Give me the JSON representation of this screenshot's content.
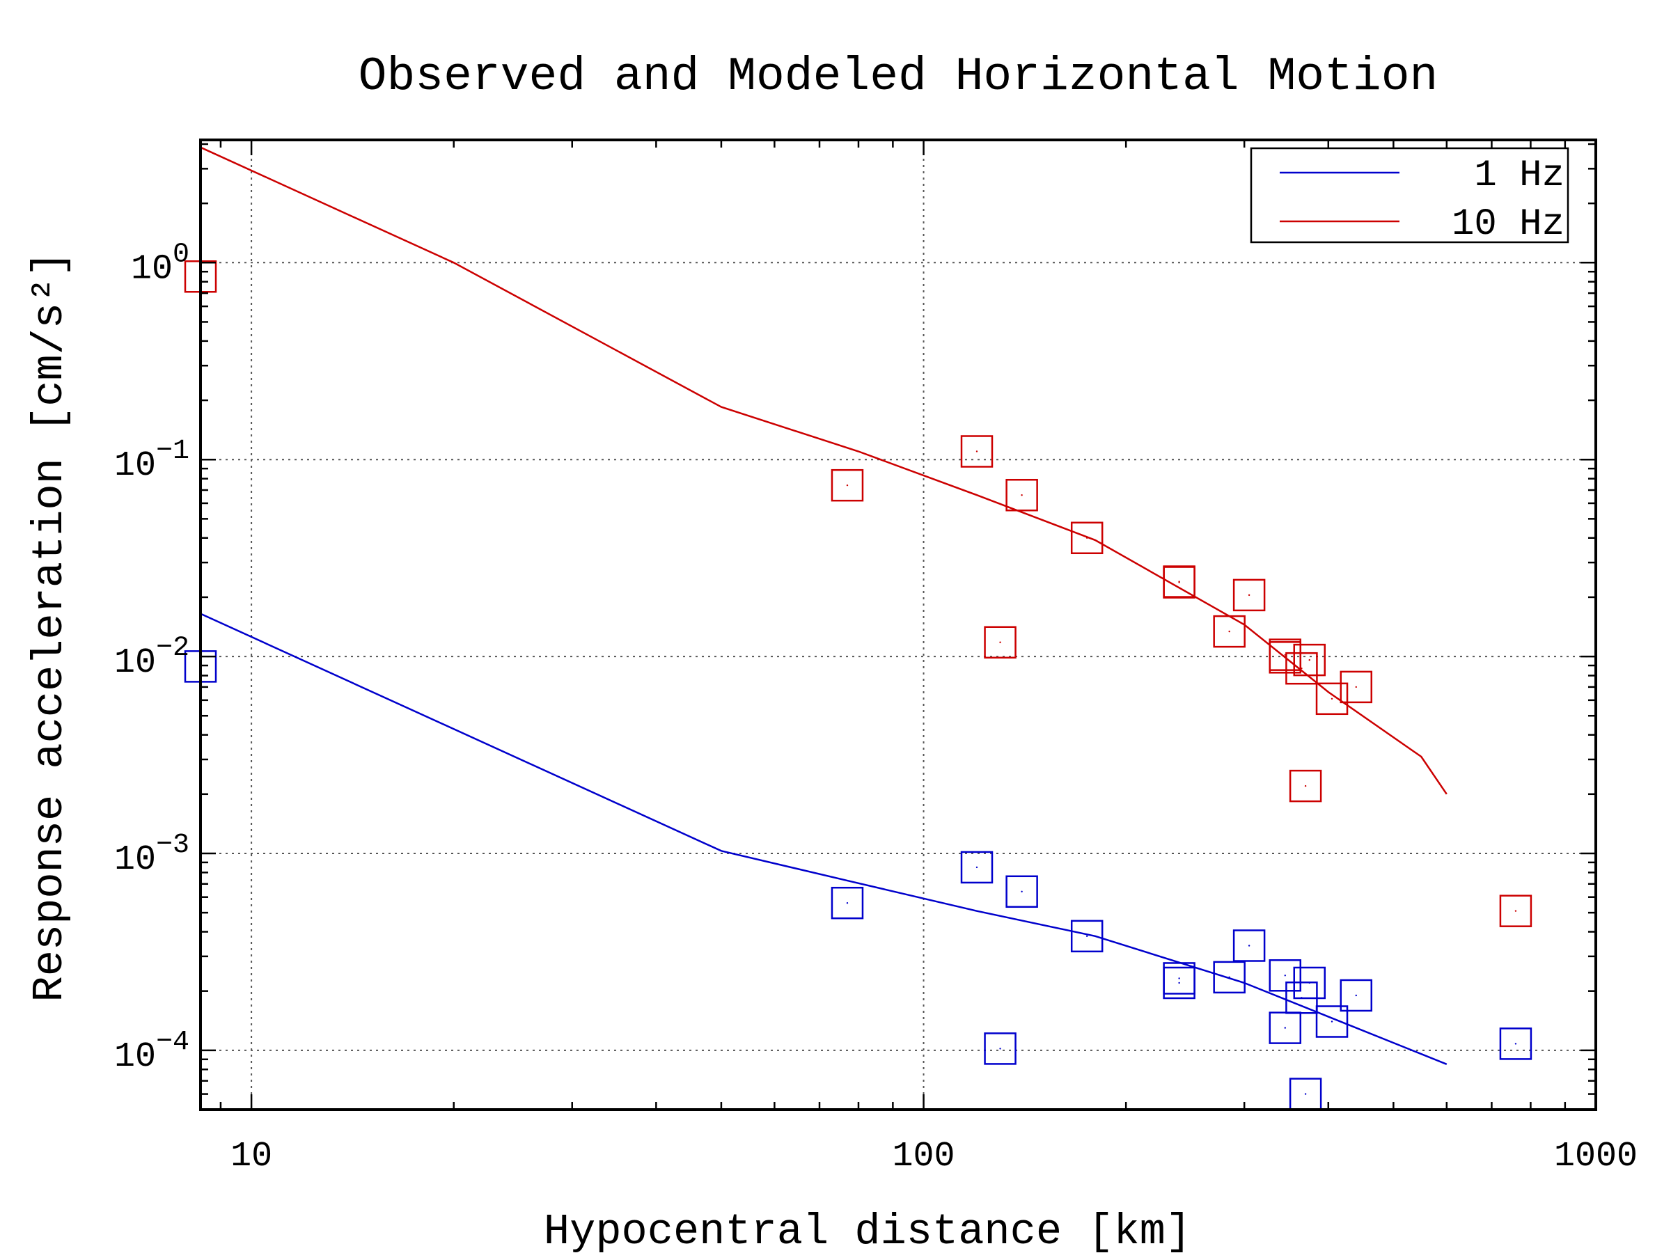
{
  "chart_data": {
    "type": "scatter",
    "title": "Observed and Modeled Horizontal Motion",
    "xlabel": "Hypocentral distance [km]",
    "ylabel": "Response acceleration [cm/s²]",
    "x_scale": "log",
    "y_scale": "log",
    "xlim": [
      8.4,
      1000
    ],
    "ylim": [
      5e-05,
      4.2
    ],
    "x_ticks": [
      {
        "value": 10,
        "label": "10"
      },
      {
        "value": 100,
        "label": "100"
      },
      {
        "value": 1000,
        "label": "1000"
      }
    ],
    "y_ticks": [
      {
        "value": 1,
        "base": "10",
        "exp": "0"
      },
      {
        "value": 0.1,
        "base": "10",
        "exp": "−1"
      },
      {
        "value": 0.01,
        "base": "10",
        "exp": "−2"
      },
      {
        "value": 0.001,
        "base": "10",
        "exp": "−3"
      },
      {
        "value": 0.0001,
        "base": "10",
        "exp": "−4"
      }
    ],
    "grid": true,
    "legend_position": "top-right",
    "series": [
      {
        "name": "1 Hz",
        "color": "#0000cc",
        "model_line": [
          [
            8.4,
            0.0165
          ],
          [
            50,
            0.00103
          ],
          [
            78,
            0.00072
          ],
          [
            120,
            0.00051
          ],
          [
            180,
            0.00038
          ],
          [
            300,
            0.00022
          ],
          [
            600,
            8.5e-05
          ]
        ],
        "observed": [
          [
            8.4,
            0.0089
          ],
          [
            77,
            0.00056
          ],
          [
            120,
            0.00085
          ],
          [
            130,
            0.000102
          ],
          [
            140,
            0.00064
          ],
          [
            175,
            0.00038
          ],
          [
            240,
            0.00022
          ],
          [
            240,
            0.000232
          ],
          [
            285,
            0.000235
          ],
          [
            305,
            0.00034
          ],
          [
            345,
            0.00024
          ],
          [
            345,
            0.00013
          ],
          [
            365,
            0.000185
          ],
          [
            370,
            6e-05
          ],
          [
            375,
            0.00022
          ],
          [
            405,
            0.00014
          ],
          [
            440,
            0.00019
          ],
          [
            760,
            0.000108
          ]
        ]
      },
      {
        "name": "10 Hz",
        "color": "#cc0000",
        "model_line": [
          [
            8.4,
            3.85
          ],
          [
            20,
            1.0
          ],
          [
            50,
            0.185
          ],
          [
            80,
            0.11
          ],
          [
            120,
            0.066
          ],
          [
            180,
            0.039
          ],
          [
            300,
            0.0145
          ],
          [
            400,
            0.0066
          ],
          [
            550,
            0.0031
          ],
          [
            600,
            0.002
          ]
        ],
        "observed": [
          [
            8.4,
            0.85
          ],
          [
            77,
            0.074
          ],
          [
            120,
            0.11
          ],
          [
            130,
            0.0118
          ],
          [
            140,
            0.066
          ],
          [
            175,
            0.04
          ],
          [
            240,
            0.024
          ],
          [
            240,
            0.0238
          ],
          [
            285,
            0.0134
          ],
          [
            305,
            0.0205
          ],
          [
            345,
            0.0099
          ],
          [
            345,
            0.0102
          ],
          [
            365,
            0.0087
          ],
          [
            370,
            0.0022
          ],
          [
            375,
            0.0096
          ],
          [
            405,
            0.0061
          ],
          [
            440,
            0.007
          ],
          [
            760,
            0.00051
          ]
        ]
      }
    ]
  }
}
